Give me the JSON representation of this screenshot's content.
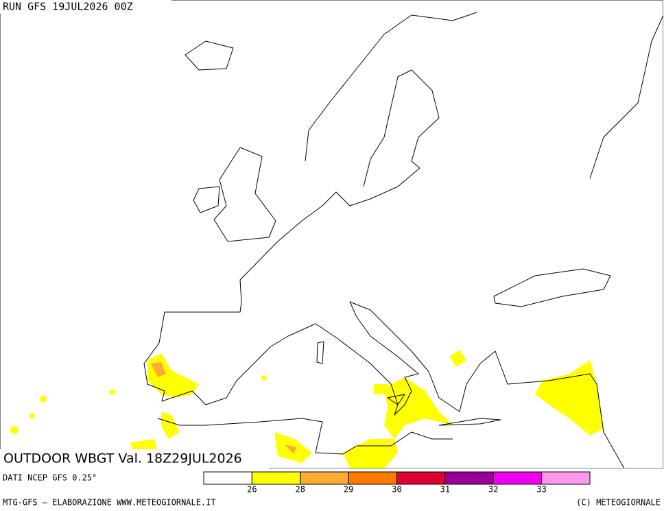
{
  "header": {
    "run": "RUN GFS 19JUL2026 00Z"
  },
  "map": {
    "title": "OUTDOOR WBGT Val. 18Z29JUL2026"
  },
  "legend": {
    "source": "DATI NCEP GFS 0.25°",
    "colors": [
      "#ffffff",
      "#ffff00",
      "#ffaa33",
      "#ff7a00",
      "#dd0033",
      "#990099",
      "#ee00ee",
      "#ff99ee"
    ],
    "labels": [
      "26",
      "28",
      "29",
      "30",
      "31",
      "32",
      "33"
    ]
  },
  "footer": {
    "left": "MTG-GFS — ELABORAZIONE WWW.METEOGIORNALE.IT",
    "right": "(C) METEOGIORNALE"
  }
}
